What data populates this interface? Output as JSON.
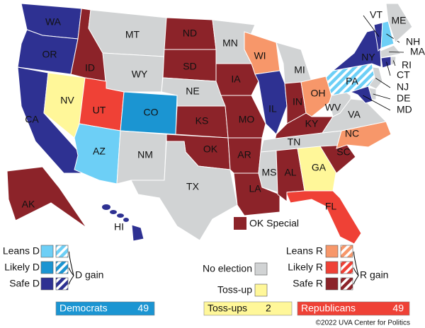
{
  "states": [
    {
      "label": "WA",
      "color": "#2e3192"
    },
    {
      "label": "OR",
      "color": "#2e3192"
    },
    {
      "label": "CA",
      "color": "#2e3192"
    },
    {
      "label": "NV",
      "color": "#fff799"
    },
    {
      "label": "ID",
      "color": "#8c2329"
    },
    {
      "label": "MT",
      "color": "#d1d3d4"
    },
    {
      "label": "WY",
      "color": "#d1d3d4"
    },
    {
      "label": "UT",
      "color": "#ef4136"
    },
    {
      "label": "CO",
      "color": "#1b95d2"
    },
    {
      "label": "AZ",
      "color": "#6dcff6"
    },
    {
      "label": "NM",
      "color": "#d1d3d4"
    },
    {
      "label": "ND",
      "color": "#8c2329"
    },
    {
      "label": "SD",
      "color": "#8c2329"
    },
    {
      "label": "NE",
      "color": "#d1d3d4"
    },
    {
      "label": "KS",
      "color": "#8c2329"
    },
    {
      "label": "OK",
      "color": "#8c2329"
    },
    {
      "label": "TX",
      "color": "#d1d3d4"
    },
    {
      "label": "MN",
      "color": "#d1d3d4"
    },
    {
      "label": "IA",
      "color": "#8c2329"
    },
    {
      "label": "MO",
      "color": "#8c2329"
    },
    {
      "label": "AR",
      "color": "#8c2329"
    },
    {
      "label": "LA",
      "color": "#8c2329"
    },
    {
      "label": "WI",
      "color": "#f7976a"
    },
    {
      "label": "IL",
      "color": "#2e3192"
    },
    {
      "label": "MI",
      "color": "#d1d3d4"
    },
    {
      "label": "IN",
      "color": "#8c2329"
    },
    {
      "label": "OH",
      "color": "#f7976a"
    },
    {
      "label": "KY",
      "color": "#8c2329"
    },
    {
      "label": "TN",
      "color": "#d1d3d4"
    },
    {
      "label": "MS",
      "color": "#d1d3d4"
    },
    {
      "label": "AL",
      "color": "#8c2329"
    },
    {
      "label": "GA",
      "color": "#fff799"
    },
    {
      "label": "FL",
      "color": "#ef4136"
    },
    {
      "label": "SC",
      "color": "#8c2329"
    },
    {
      "label": "NC",
      "color": "#f7976a"
    },
    {
      "label": "VA",
      "color": "#d1d3d4"
    },
    {
      "label": "WV",
      "color": "#d1d3d4"
    },
    {
      "label": "PA",
      "color": "#6dcff6",
      "hatch": true
    },
    {
      "label": "NY",
      "color": "#2e3192"
    },
    {
      "label": "VT",
      "color": "#2e3192"
    },
    {
      "label": "NH",
      "color": "#6dcff6"
    },
    {
      "label": "ME",
      "color": "#d1d3d4"
    },
    {
      "label": "MA",
      "color": "#d1d3d4"
    },
    {
      "label": "CT",
      "color": "#2e3192"
    },
    {
      "label": "RI",
      "color": "#d1d3d4"
    },
    {
      "label": "NJ",
      "color": "#d1d3d4"
    },
    {
      "label": "DE",
      "color": "#d1d3d4"
    },
    {
      "label": "MD",
      "color": "#2e3192"
    },
    {
      "label": "AK",
      "color": "#8c2329"
    },
    {
      "label": "HI",
      "color": "#2e3192"
    }
  ],
  "special": {
    "label": "OK Special",
    "color": "#8c2329"
  },
  "legend": {
    "democrats": {
      "items": [
        {
          "label": "Leans D",
          "color": "#6dcff6"
        },
        {
          "label": "Likely D",
          "color": "#1b95d2"
        },
        {
          "label": "Safe D",
          "color": "#2e3192"
        }
      ],
      "gain": "D gain"
    },
    "middle": {
      "items": [
        {
          "label": "No election",
          "color": "#d1d3d4"
        },
        {
          "label": "Toss-up",
          "color": "#fff799"
        }
      ]
    },
    "republicans": {
      "items": [
        {
          "label": "Leans R",
          "color": "#f7976a"
        },
        {
          "label": "Likely R",
          "color": "#ef4136"
        },
        {
          "label": "Safe R",
          "color": "#8c2329"
        }
      ],
      "gain": "R gain"
    }
  },
  "totals": [
    {
      "label": "Democrats",
      "value": 49,
      "color": "#1b95d2"
    },
    {
      "label": "Toss-ups",
      "value": 2,
      "color": "#fff799"
    },
    {
      "label": "Republicans",
      "value": 49,
      "color": "#ef4136"
    }
  ],
  "credit": "©2022 UVA Center for Politics"
}
